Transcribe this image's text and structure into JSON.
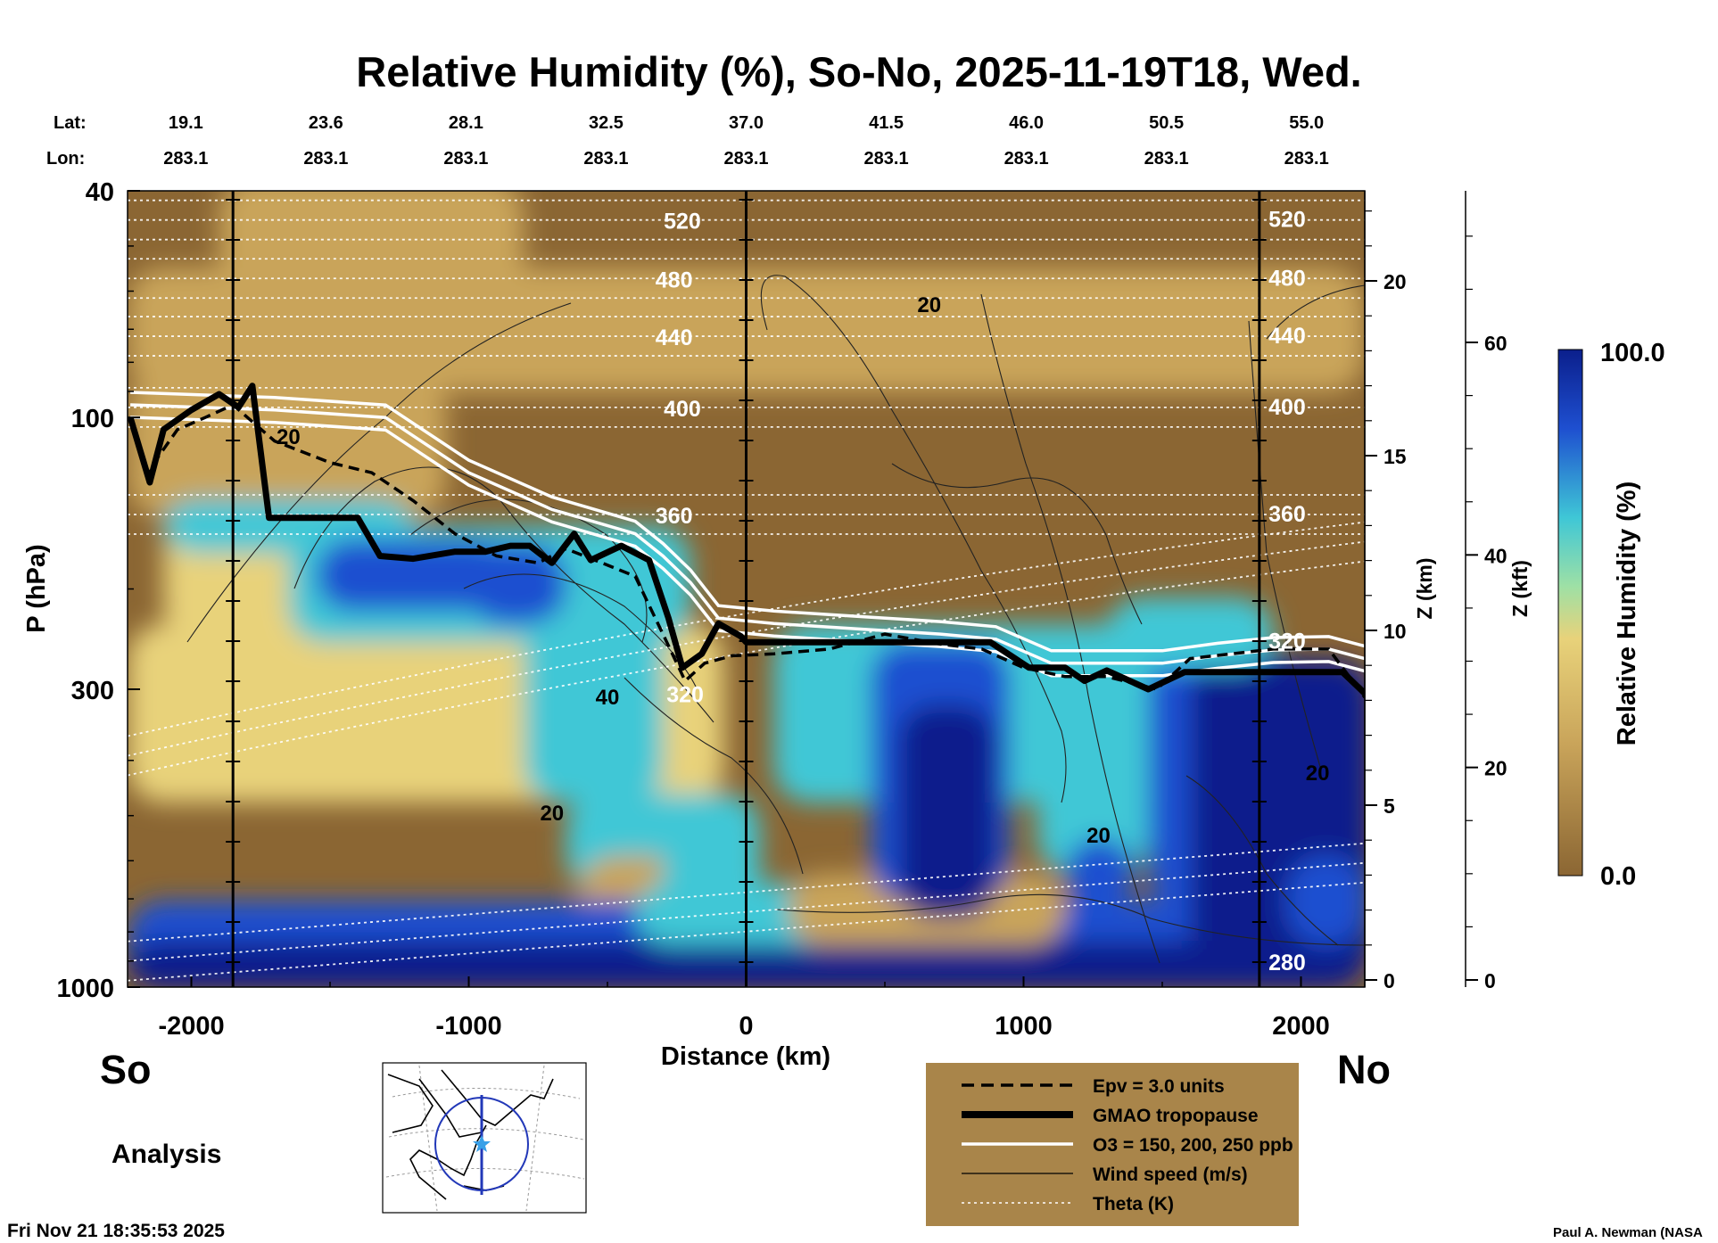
{
  "chart_data": {
    "type": "heatmap",
    "title": "Relative Humidity (%), So-No, 2025-11-19T18, Wed.",
    "xlabel": "Distance (km)",
    "ylabel": "P (hPa)",
    "y2label": "Z (km)",
    "y3label": "Z (kft)",
    "xlim": [
      -2230,
      2230
    ],
    "ylim_hpa": [
      1000,
      40
    ],
    "x_ticks": [
      -2000,
      -1000,
      0,
      1000,
      2000
    ],
    "x_tick_labels": [
      "-2000",
      "-1000",
      "0",
      "1000",
      "2000"
    ],
    "p_ticks": [
      40,
      100,
      300,
      1000
    ],
    "p_tick_labels": [
      "40",
      "100",
      "300",
      "1000"
    ],
    "z_km_ticks": [
      0,
      5,
      10,
      15,
      20
    ],
    "z_km_labels": [
      "0",
      "5",
      "10",
      "15",
      "20"
    ],
    "z_kft_ticks": [
      0,
      20,
      40,
      60
    ],
    "z_kft_labels": [
      "0",
      "20",
      "40",
      "60"
    ],
    "lat_label": "Lat:",
    "lon_label": "Lon:",
    "lat_values": [
      "19.1",
      "23.6",
      "28.1",
      "32.5",
      "37.0",
      "41.5",
      "46.0",
      "50.5",
      "55.0"
    ],
    "lon_values": [
      "283.1",
      "283.1",
      "283.1",
      "283.1",
      "283.1",
      "283.1",
      "283.1",
      "283.1",
      "283.1"
    ],
    "endpoint_south": "So",
    "endpoint_north": "No",
    "vertical_markers_km": [
      -1850,
      0,
      1850
    ],
    "colorbar": {
      "label": "Relative Humidity (%)",
      "min_label": "0.0",
      "max_label": "100.0",
      "min": 0,
      "max": 100
    },
    "theta_contours": [
      {
        "label": "520",
        "p": 45
      },
      {
        "label": "480",
        "p": 57
      },
      {
        "label": "440",
        "p": 72
      },
      {
        "label": "400",
        "p": 96
      },
      {
        "label": "360",
        "p": 148
      },
      {
        "label": "320",
        "p": 305
      },
      {
        "label": "280",
        "p": 900
      }
    ],
    "wind_labels": [
      "20",
      "20",
      "40",
      "20",
      "20",
      "20"
    ],
    "tropopause_p": [
      [
        -2220,
        100
      ],
      [
        -2150,
        130
      ],
      [
        -2100,
        105
      ],
      [
        -2000,
        97
      ],
      [
        -1900,
        91
      ],
      [
        -1830,
        96
      ],
      [
        -1780,
        88
      ],
      [
        -1720,
        150
      ],
      [
        -1400,
        150
      ],
      [
        -1320,
        175
      ],
      [
        -1200,
        177
      ],
      [
        -1050,
        172
      ],
      [
        -940,
        172
      ],
      [
        -850,
        168
      ],
      [
        -780,
        168
      ],
      [
        -700,
        180
      ],
      [
        -620,
        160
      ],
      [
        -560,
        178
      ],
      [
        -450,
        168
      ],
      [
        -350,
        178
      ],
      [
        -280,
        225
      ],
      [
        -230,
        275
      ],
      [
        -160,
        260
      ],
      [
        -100,
        230
      ],
      [
        -20,
        242
      ],
      [
        0,
        248
      ],
      [
        880,
        248
      ],
      [
        1020,
        275
      ],
      [
        1150,
        275
      ],
      [
        1220,
        290
      ],
      [
        1300,
        278
      ],
      [
        1450,
        300
      ],
      [
        1580,
        280
      ],
      [
        2150,
        280
      ],
      [
        2230,
        305
      ]
    ],
    "epv_p": [
      [
        -2220,
        100
      ],
      [
        -2160,
        125
      ],
      [
        -2050,
        105
      ],
      [
        -1950,
        100
      ],
      [
        -1850,
        95
      ],
      [
        -1700,
        110
      ],
      [
        -1500,
        120
      ],
      [
        -1350,
        125
      ],
      [
        -1200,
        140
      ],
      [
        -1050,
        160
      ],
      [
        -900,
        175
      ],
      [
        -750,
        180
      ],
      [
        -650,
        170
      ],
      [
        -520,
        180
      ],
      [
        -400,
        190
      ],
      [
        -300,
        240
      ],
      [
        -220,
        290
      ],
      [
        -150,
        270
      ],
      [
        -50,
        262
      ],
      [
        100,
        260
      ],
      [
        300,
        255
      ],
      [
        500,
        240
      ],
      [
        700,
        250
      ],
      [
        850,
        255
      ],
      [
        1000,
        275
      ],
      [
        1150,
        285
      ],
      [
        1300,
        285
      ],
      [
        1480,
        300
      ],
      [
        1600,
        265
      ],
      [
        1900,
        255
      ],
      [
        2100,
        255
      ],
      [
        2230,
        310
      ]
    ],
    "ozone_p": [
      [
        -2220,
        95
      ],
      [
        -1700,
        97
      ],
      [
        -1300,
        100
      ],
      [
        -1000,
        125
      ],
      [
        -700,
        145
      ],
      [
        -400,
        160
      ],
      [
        -300,
        175
      ],
      [
        -200,
        195
      ],
      [
        -100,
        225
      ],
      [
        100,
        230
      ],
      [
        400,
        235
      ],
      [
        700,
        240
      ],
      [
        900,
        245
      ],
      [
        1100,
        270
      ],
      [
        1300,
        270
      ],
      [
        1500,
        270
      ],
      [
        1700,
        262
      ],
      [
        1900,
        256
      ],
      [
        2100,
        255
      ],
      [
        2230,
        265
      ]
    ],
    "legend": [
      {
        "label": "Epv = 3.0 units",
        "style": "dashed"
      },
      {
        "label": "GMAO tropopause",
        "style": "thick"
      },
      {
        "label": "O3 = 150, 200, 250 ppb",
        "style": "white"
      },
      {
        "label": "Wind speed (m/s)",
        "style": "thin"
      },
      {
        "label": "Theta (K)",
        "style": "dotted"
      }
    ],
    "colors": {
      "dry": "#8b6633",
      "tan": "#c9a45a",
      "yellow": "#e8d27a",
      "cyan": "#3fc7d6",
      "blue": "#1e4fd0",
      "navy": "#0b1f8c",
      "legend_bg": "#a9854a"
    }
  },
  "footer": {
    "analysis_label": "Analysis",
    "timestamp": "Fri Nov 21 18:35:53 2025",
    "credit": "Paul A. Newman (NASA"
  },
  "map_inset": {
    "name": "cross-section location map"
  }
}
